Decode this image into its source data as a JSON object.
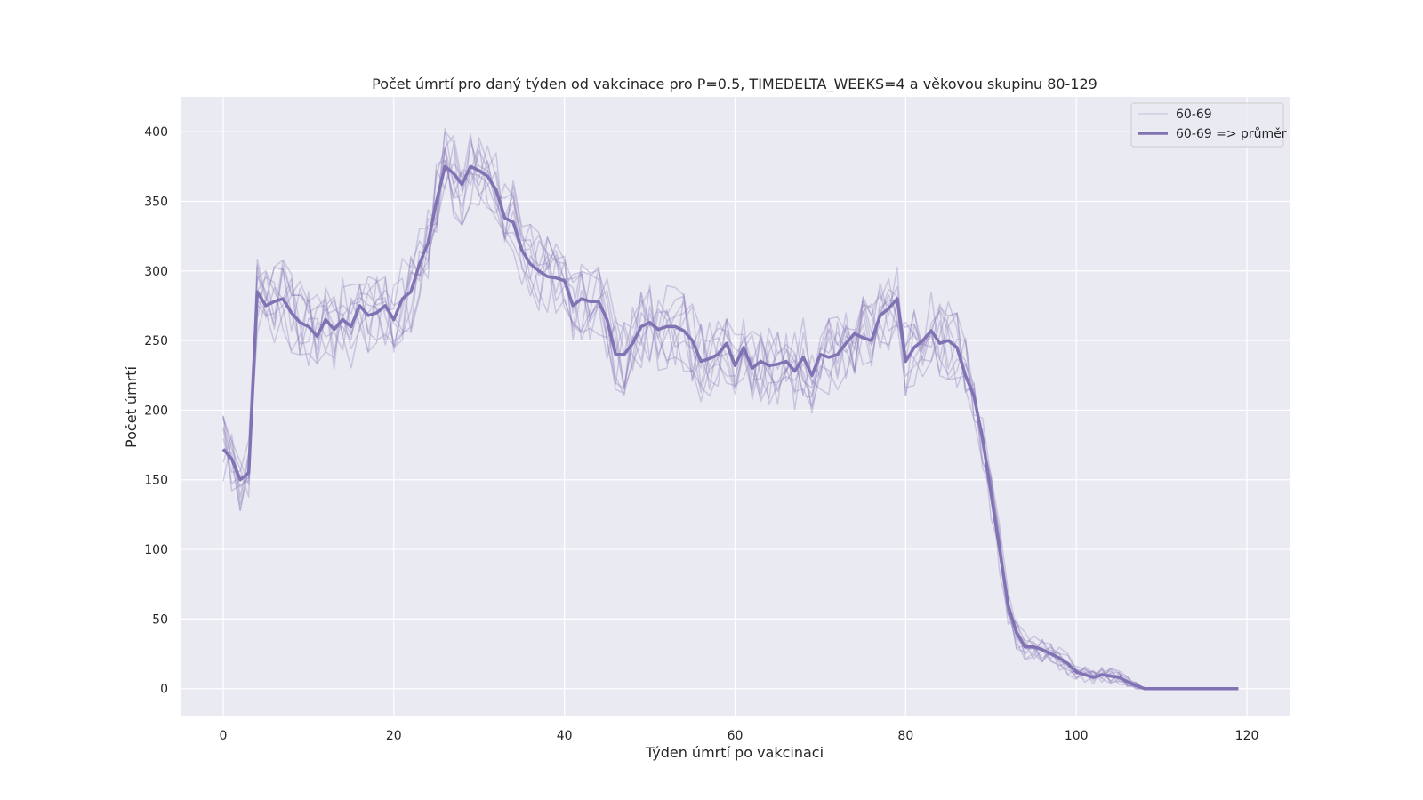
{
  "chart_data": {
    "type": "line",
    "title": "Počet úmrtí pro daný týden od vakcinace pro P=0.5, TIMEDELTA_WEEKS=4 a věkovou skupinu 80-129",
    "xlabel": "Týden úmrtí po vakcinaci",
    "ylabel": "Počet úmrtí",
    "xlim": [
      -5,
      125
    ],
    "ylim": [
      -20,
      425
    ],
    "x_ticks": [
      0,
      20,
      40,
      60,
      80,
      100,
      120
    ],
    "y_ticks": [
      0,
      50,
      100,
      150,
      200,
      250,
      300,
      350,
      400
    ],
    "grid": true,
    "background": "#eaeaf2",
    "grid_color": "#ffffff",
    "line_color": "#8172b3",
    "legend_position": "top-right",
    "legend": [
      {
        "label": "60-69",
        "style": "thin-faint"
      },
      {
        "label": "60-69 => průměr",
        "style": "thick"
      }
    ],
    "mean_series": {
      "name": "60-69 => průměr",
      "x": [
        0,
        1,
        2,
        3,
        4,
        5,
        6,
        7,
        8,
        9,
        10,
        11,
        12,
        13,
        14,
        15,
        16,
        17,
        18,
        19,
        20,
        21,
        22,
        23,
        24,
        25,
        26,
        27,
        28,
        29,
        30,
        31,
        32,
        33,
        34,
        35,
        36,
        37,
        38,
        39,
        40,
        41,
        42,
        43,
        44,
        45,
        46,
        47,
        48,
        49,
        50,
        51,
        52,
        53,
        54,
        55,
        56,
        57,
        58,
        59,
        60,
        61,
        62,
        63,
        64,
        65,
        66,
        67,
        68,
        69,
        70,
        71,
        72,
        73,
        74,
        75,
        76,
        77,
        78,
        79,
        80,
        81,
        82,
        83,
        84,
        85,
        86,
        87,
        88,
        89,
        90,
        91,
        92,
        93,
        94,
        95,
        96,
        97,
        98,
        99,
        100,
        101,
        102,
        103,
        104,
        105,
        106,
        107,
        108,
        109,
        110,
        111,
        112,
        113,
        114,
        115,
        116,
        117,
        118,
        119
      ],
      "y": [
        172,
        165,
        150,
        155,
        285,
        275,
        278,
        280,
        270,
        263,
        260,
        253,
        265,
        258,
        265,
        260,
        275,
        268,
        270,
        275,
        265,
        280,
        285,
        305,
        320,
        350,
        375,
        370,
        362,
        375,
        372,
        368,
        358,
        338,
        335,
        315,
        305,
        300,
        296,
        295,
        293,
        275,
        280,
        278,
        278,
        265,
        240,
        240,
        248,
        260,
        263,
        258,
        260,
        260,
        257,
        250,
        235,
        237,
        240,
        248,
        232,
        245,
        230,
        235,
        232,
        233,
        235,
        228,
        238,
        225,
        240,
        238,
        240,
        248,
        255,
        252,
        250,
        268,
        273,
        280,
        235,
        245,
        250,
        257,
        248,
        250,
        245,
        225,
        210,
        180,
        140,
        100,
        60,
        40,
        30,
        30,
        28,
        25,
        22,
        18,
        12,
        10,
        8,
        10,
        9,
        8,
        5,
        2,
        0,
        0,
        0,
        0,
        0,
        0,
        0,
        0,
        0,
        0,
        0,
        0
      ]
    },
    "series_count": 10
  }
}
